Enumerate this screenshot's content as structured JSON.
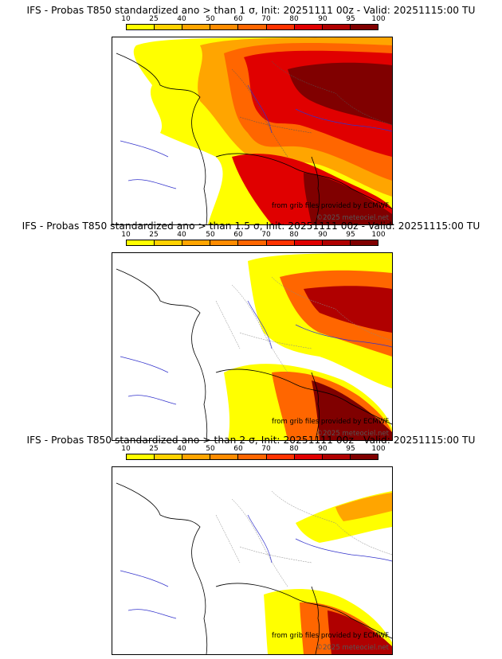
{
  "colorbar": {
    "tick_labels": [
      "10",
      "25",
      "40",
      "50",
      "60",
      "70",
      "80",
      "90",
      "95",
      "100"
    ],
    "colors": [
      "#ffff00",
      "#ffd200",
      "#ffa500",
      "#ff8c00",
      "#ff6600",
      "#ff3300",
      "#e00000",
      "#b00000",
      "#800000"
    ]
  },
  "credits": {
    "source": "from grib files provided by ECMWF",
    "copyright": "©2025 meteociel.net"
  },
  "panels": [
    {
      "title": "IFS - Probas T850  standardized ano > than 1 σ, Init: 20251111 00z - Valid: 20251115:00 TU"
    },
    {
      "title": "IFS - Probas T850  standardized ano > than 1.5 σ, Init: 20251111 00z - Valid: 20251115:00 TU"
    },
    {
      "title": "IFS - Probas T850  standardized ano > than 2 σ, Init: 20251111 00z - Valid: 20251115:00 TU"
    }
  ]
}
